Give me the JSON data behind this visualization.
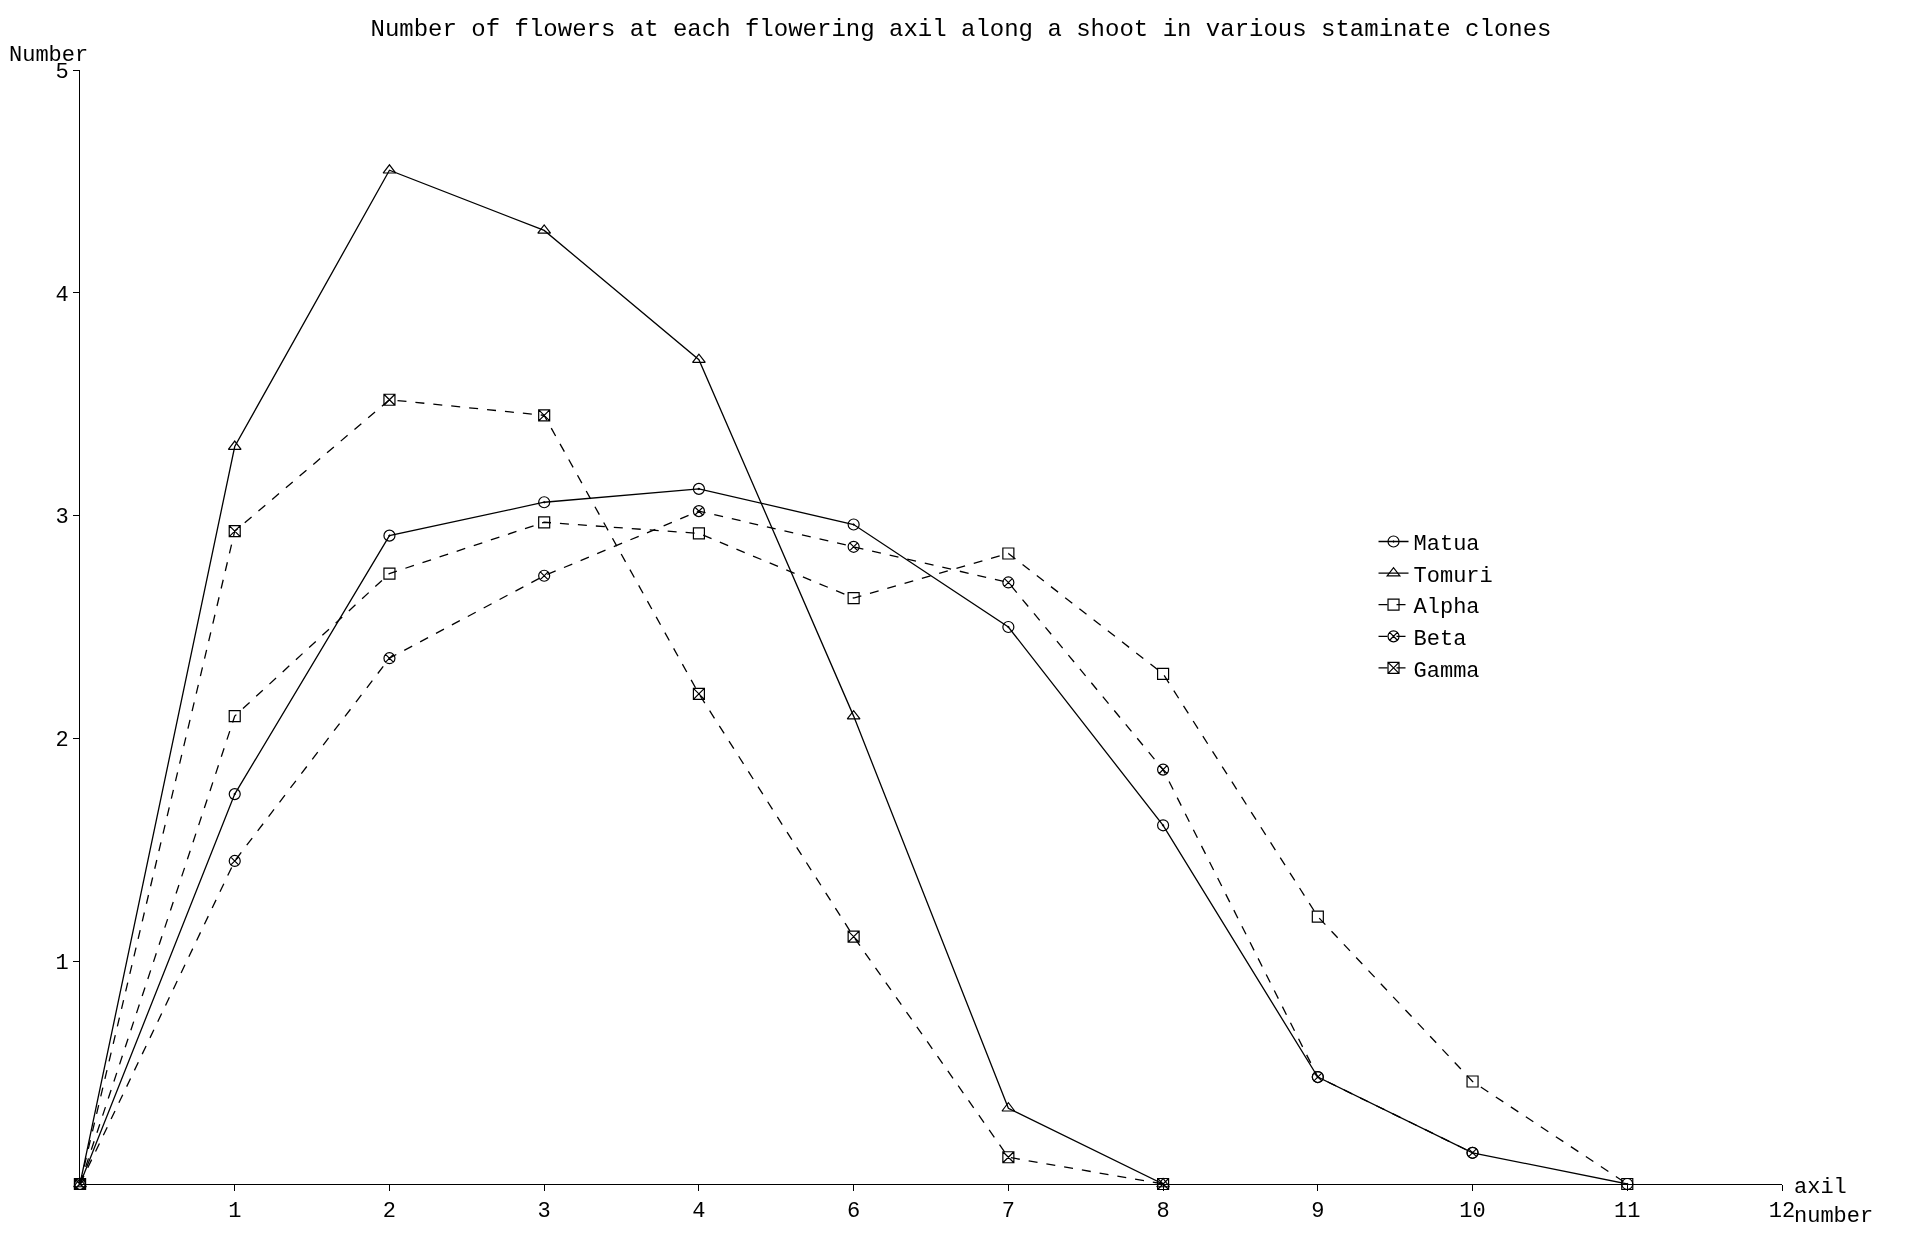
{
  "chart_data": {
    "type": "line",
    "title": "Number of flowers at each flowering axil along a shoot in various staminate clones",
    "xlabel": "axil\nnumber",
    "ylabel": "Number",
    "categories": [
      null,
      "1",
      "2",
      "3",
      "4",
      "6",
      "7",
      "8",
      "9",
      "10",
      "11",
      "12"
    ],
    "ylim": [
      0,
      5
    ],
    "yticks": [
      1,
      2,
      3,
      4,
      5
    ],
    "grid": false,
    "legend": "right",
    "series": [
      {
        "name": "Matua",
        "color": "#000000",
        "marker": "circle",
        "line_style": "solid",
        "values": [
          0,
          1.75,
          2.91,
          3.06,
          3.12,
          2.96,
          2.5,
          1.61,
          0.48,
          0.14,
          0,
          null
        ]
      },
      {
        "name": "Tomuri",
        "color": "#000000",
        "marker": "triangle",
        "line_style": "solid",
        "values": [
          0,
          3.31,
          4.55,
          4.28,
          3.7,
          2.1,
          0.34,
          0,
          null,
          null,
          null,
          null
        ]
      },
      {
        "name": "Alpha",
        "color": "#000000",
        "marker": "square",
        "line_style": "dashed",
        "values": [
          0,
          2.1,
          2.74,
          2.97,
          2.92,
          2.63,
          2.83,
          2.29,
          1.2,
          0.46,
          0,
          null
        ]
      },
      {
        "name": "Beta",
        "color": "#000000",
        "marker": "cross",
        "line_style": "dashed",
        "values": [
          0,
          1.45,
          2.36,
          2.73,
          3.02,
          2.86,
          2.7,
          1.86,
          0.48,
          0.14,
          null,
          null
        ]
      },
      {
        "name": "Gamma",
        "color": "#000000",
        "marker": "cross",
        "line_style": "dashed",
        "values": [
          0,
          2.93,
          3.52,
          3.45,
          2.2,
          1.11,
          0.12,
          0,
          null,
          null,
          null,
          null
        ]
      }
    ]
  }
}
